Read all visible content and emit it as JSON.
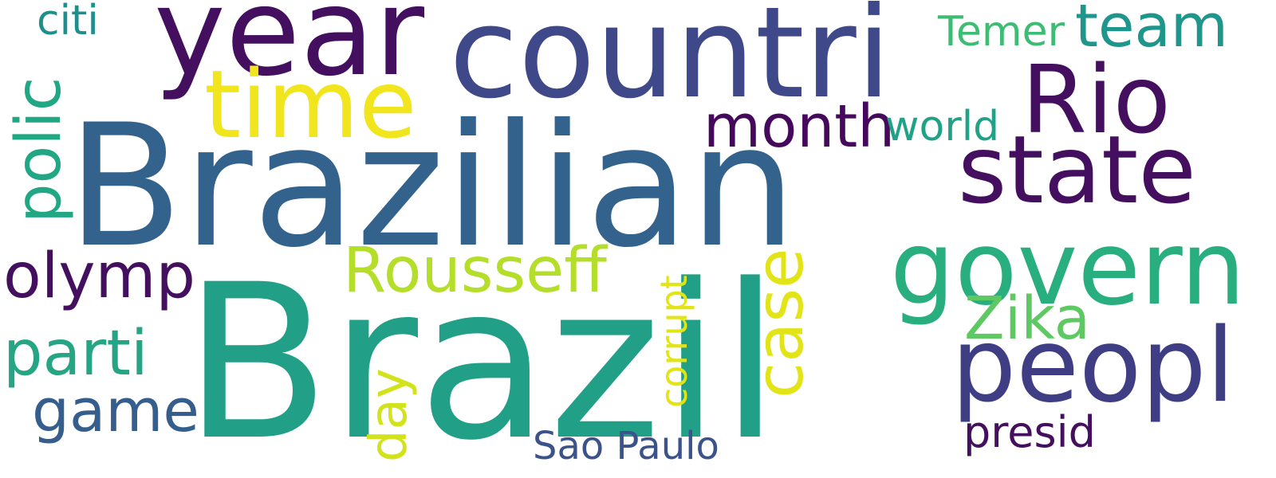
{
  "background": "#ffffff",
  "words": [
    {
      "id": "brazil",
      "text": "Brazil",
      "color": "#21a087"
    },
    {
      "id": "brazilian",
      "text": "Brazilian",
      "color": "#33638d"
    },
    {
      "id": "countri",
      "text": "countri",
      "color": "#3f4889"
    },
    {
      "id": "year",
      "text": "year",
      "color": "#440f5e"
    },
    {
      "id": "govern",
      "text": "govern",
      "color": "#29af7f"
    },
    {
      "id": "peopl",
      "text": "peopl",
      "color": "#3f3d84"
    },
    {
      "id": "state",
      "text": "state",
      "color": "#440f5e"
    },
    {
      "id": "rio",
      "text": "Rio",
      "color": "#440f5e"
    },
    {
      "id": "time",
      "text": "time",
      "color": "#f1e51d"
    },
    {
      "id": "olymp",
      "text": "olymp",
      "color": "#440f5e"
    },
    {
      "id": "parti",
      "text": "parti",
      "color": "#25a584"
    },
    {
      "id": "game",
      "text": "game",
      "color": "#355e8d"
    },
    {
      "id": "month",
      "text": "month",
      "color": "#46085c"
    },
    {
      "id": "rousseff",
      "text": "Rousseff",
      "color": "#b5de2b"
    },
    {
      "id": "zika",
      "text": "Zika",
      "color": "#5ec962"
    },
    {
      "id": "team",
      "text": "team",
      "color": "#1f968b"
    },
    {
      "id": "presid",
      "text": "presid",
      "color": "#440f5e"
    },
    {
      "id": "world",
      "text": "world",
      "color": "#21a287"
    },
    {
      "id": "temer",
      "text": "Temer",
      "color": "#3dbc74"
    },
    {
      "id": "citi",
      "text": "citi",
      "color": "#1f8f8d"
    },
    {
      "id": "sao-paulo",
      "text": "Sao Paulo",
      "color": "#3b528b"
    },
    {
      "id": "polic",
      "text": "polic",
      "color": "#22a784"
    },
    {
      "id": "case",
      "text": "case",
      "color": "#e2e418"
    },
    {
      "id": "day",
      "text": "day",
      "color": "#d2e21b"
    },
    {
      "id": "corrupt",
      "text": "corrupt",
      "color": "#e2e418"
    }
  ]
}
